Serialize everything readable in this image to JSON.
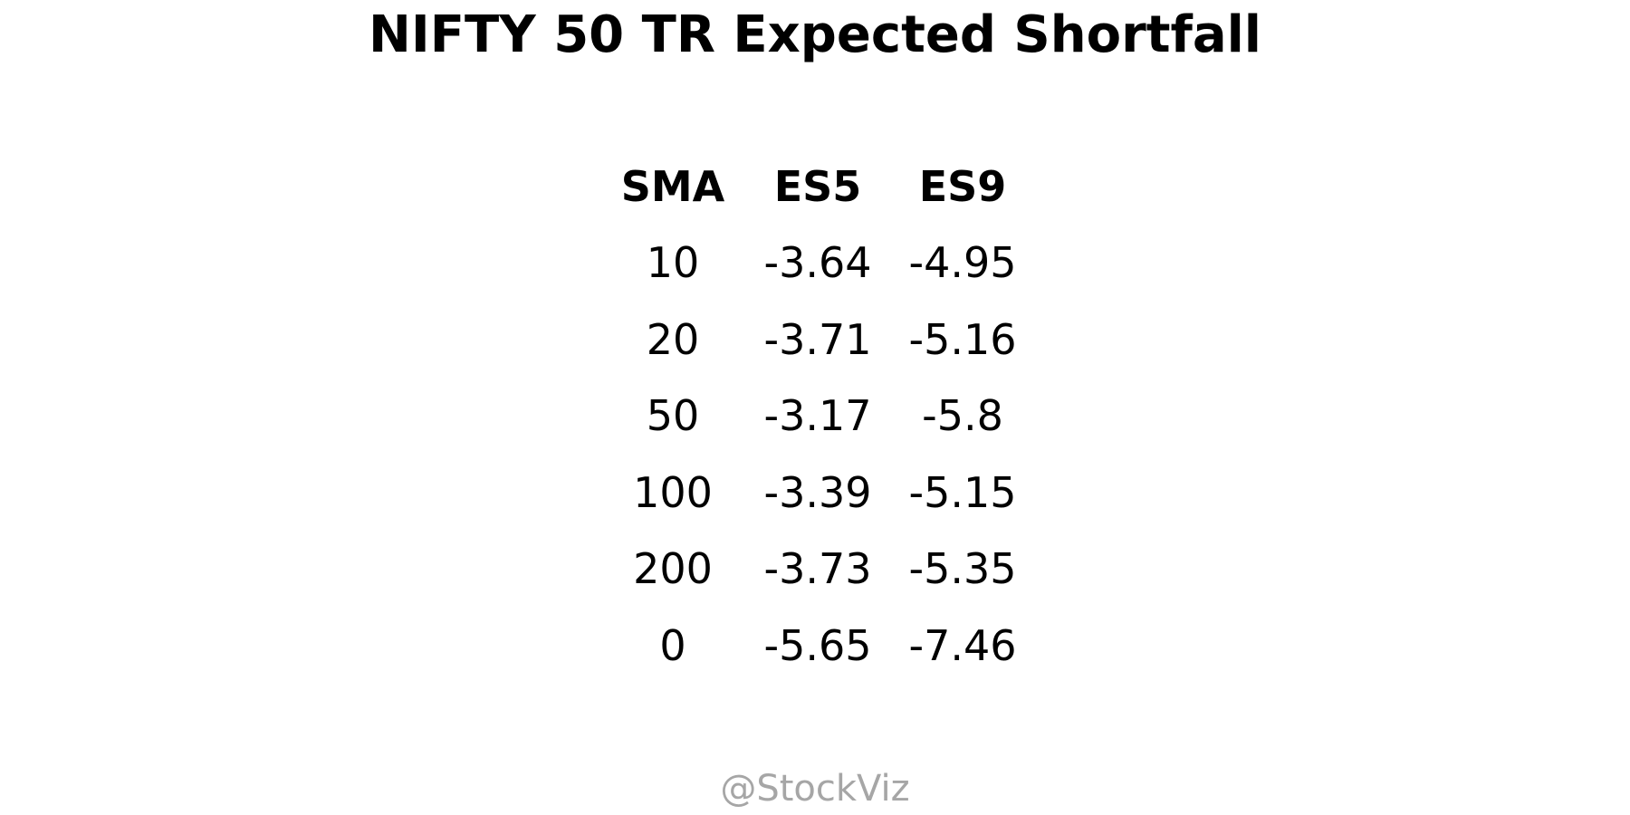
{
  "chart_data": {
    "type": "table",
    "title": "NIFTY 50 TR Expected Shortfall",
    "columns": [
      "SMA",
      "ES5",
      "ES9"
    ],
    "rows": [
      [
        "10",
        "-3.64",
        "-4.95"
      ],
      [
        "20",
        "-3.71",
        "-5.16"
      ],
      [
        "50",
        "-3.17",
        "-5.8"
      ],
      [
        "100",
        "-3.39",
        "-5.15"
      ],
      [
        "200",
        "-3.73",
        "-5.35"
      ],
      [
        "0",
        "-5.65",
        "-7.46"
      ]
    ]
  },
  "watermark": "@StockViz"
}
